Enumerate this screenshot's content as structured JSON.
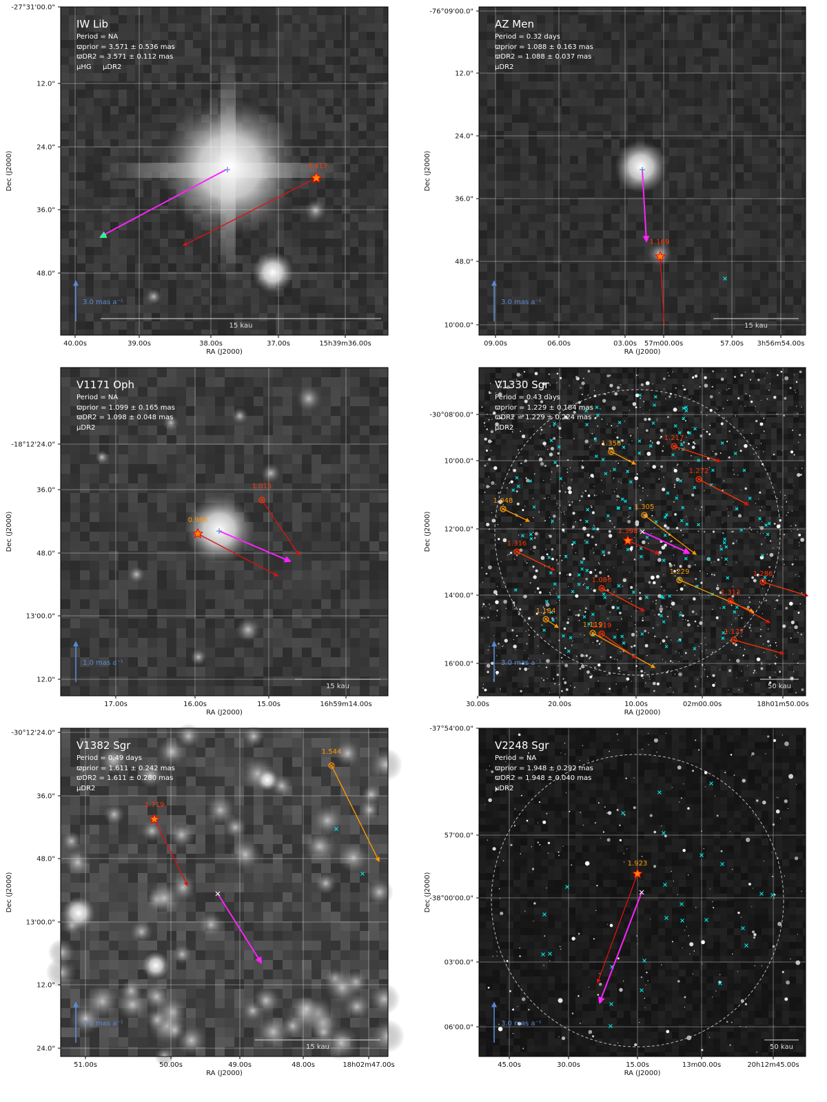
{
  "colors": {
    "dr2": "#ff22ff",
    "hg": "#22ff88",
    "prior": "#dd1111",
    "neighbor_orange": "#ff9900",
    "neighbor_red": "#ff3300",
    "cross": "#00e5e5",
    "scalebar": "#5a8ad6",
    "star_fill": "#ff8800",
    "star_edge": "#ff0000"
  },
  "labels": {
    "ra_axis": "RA (J2000)",
    "dec_axis": "Dec (J2000)",
    "pm_dr2": "μDR2",
    "pm_hg": "μHG"
  },
  "panels": [
    {
      "id": "iw-lib",
      "name": "IW Lib",
      "period": "Period = NA",
      "prior": "ϖprior = 3.571 ± 0.536 mas",
      "dr2": "ϖDR2 = 3.571 ± 0.112 mas",
      "legend": [
        "μHG",
        "μDR2"
      ],
      "dec_ticks": [
        "-27°31'00.0\"",
        "12.0\"",
        "24.0\"",
        "36.0\"",
        "48.0\""
      ],
      "ra_ticks": [
        "40.00s",
        "39.00s",
        "38.00s",
        "37.00s",
        "15h39m36.00s"
      ],
      "scale_pm": "3.0 mas a⁻¹",
      "scale_kau": "15 kau",
      "star_value": "3.417"
    },
    {
      "id": "az-men",
      "name": "AZ Men",
      "period": "Period =   0.32 days",
      "prior": "ϖprior = 1.088 ± 0.163 mas",
      "dr2": "ϖDR2 = 1.088 ± 0.037 mas",
      "legend": [
        "μDR2"
      ],
      "dec_ticks": [
        "-76°09'00.0\"",
        "12.0\"",
        "24.0\"",
        "36.0\"",
        "48.0\"",
        "10'00.0\""
      ],
      "ra_ticks": [
        "09.00s",
        "06.00s",
        "03.00s",
        "57m00.00s",
        "57.00s",
        "3h56m54.00s"
      ],
      "scale_pm": "3.0 mas a⁻¹",
      "scale_kau": "15 kau",
      "star_value": "1.169"
    },
    {
      "id": "v1171-oph",
      "name": "V1171 Oph",
      "period": "Period = NA",
      "prior": "ϖprior = 1.099 ± 0.165 mas",
      "dr2": "ϖDR2 = 1.098 ± 0.048 mas",
      "legend": [
        "μDR2"
      ],
      "dec_ticks": [
        "-18°12'24.0\"",
        "36.0\"",
        "48.0\"",
        "13'00.0\"",
        "12.0\""
      ],
      "ra_ticks": [
        "17.00s",
        "16.00s",
        "15.00s",
        "16h59m14.00s"
      ],
      "scale_pm": "1.0 mas a⁻¹",
      "scale_kau": "15 kau",
      "star_value": "0.985",
      "neighbor_values": [
        "1.015"
      ]
    },
    {
      "id": "v1330-sgr",
      "name": "V1330 Sgr",
      "period": "Period =   0.43 days",
      "prior": "ϖprior = 1.229 ± 0.184 mas",
      "dr2": "ϖDR2 = 1.229 ± 0.224 mas",
      "legend": [
        "μDR2"
      ],
      "dec_ticks": [
        "-30°08'00.0\"",
        "10'00.0\"",
        "12'00.0\"",
        "14'00.0\"",
        "16'00.0\""
      ],
      "ra_ticks": [
        "30.00s",
        "20.00s",
        "10.00s",
        "02m00.00s",
        "18h01m50.00s"
      ],
      "scale_pm": "3.0 mas a⁻¹",
      "scale_kau": "50 kau",
      "star_value": "1.398",
      "neighbor_values": [
        "1.358",
        "1.217",
        "1.272",
        "1.048",
        "1.305",
        "1.316",
        "1.229",
        "1.080",
        "1.286",
        "1.313",
        "1.184",
        "1.119",
        "1.219",
        "1.127"
      ]
    },
    {
      "id": "v1382-sgr",
      "name": "V1382 Sgr",
      "period": "Period =   0.49 days",
      "prior": "ϖprior = 1.611 ± 0.242 mas",
      "dr2": "ϖDR2 = 1.611 ± 0.280 mas",
      "legend": [
        "μDR2"
      ],
      "dec_ticks": [
        "-30°12'24.0\"",
        "36.0\"",
        "48.0\"",
        "13'00.0\"",
        "12.0\"",
        "24.0\""
      ],
      "ra_ticks": [
        "51.00s",
        "50.00s",
        "49.00s",
        "48.00s",
        "18h02m47.00s"
      ],
      "scale_pm": "3.0 mas a⁻¹",
      "scale_kau": "15 kau",
      "star_value": "1.719",
      "neighbor_values": [
        "1.544"
      ]
    },
    {
      "id": "v2248-sgr",
      "name": "V2248 Sgr",
      "period": "Period = NA",
      "prior": "ϖprior = 1.948 ± 0.292 mas",
      "dr2": "ϖDR2 = 1.948 ± 0.040 mas",
      "legend": [
        "μDR2"
      ],
      "dec_ticks": [
        "-37°54'00.0\"",
        "57'00.0\"",
        "-38°00'00.0\"",
        "03'00.0\"",
        "06'00.0\""
      ],
      "ra_ticks": [
        "45.00s",
        "30.00s",
        "15.00s",
        "13m00.00s",
        "20h12m45.00s"
      ],
      "scale_pm": "3.0 mas a⁻¹",
      "scale_kau": "50 kau",
      "star_value": "1.923"
    }
  ]
}
